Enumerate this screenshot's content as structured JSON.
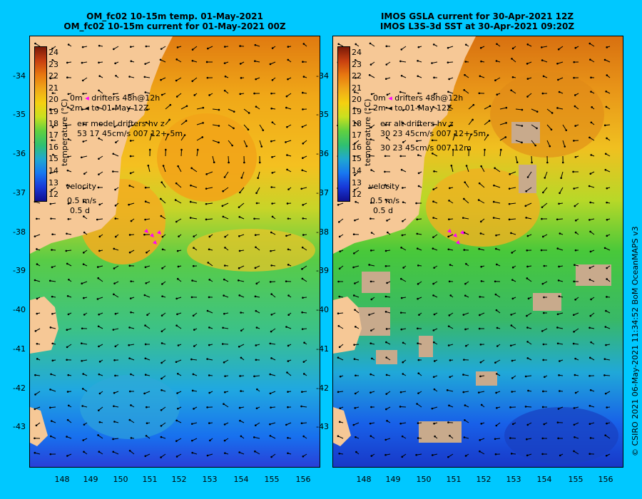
{
  "panels": [
    {
      "title_line1": "OM_fc02 10-15m temp. 01-May-2021",
      "title_line2": "OM_fc02 10-15m current for 01-May-2021 00Z",
      "legend_drifters": "drifters 48h@12h",
      "legend_to": "to 01-May 12Z",
      "legend_prefix_1": "0m",
      "legend_prefix_2": "2m",
      "err_title": "err model drifters hv z",
      "err_line1": "53 17 45cm/s 007 12+-5m",
      "err_line2": ""
    },
    {
      "title_line1": "IMOS GSLA current for 30-Apr-2021 12Z",
      "title_line2": "IMOS L3S-3d SST at 30-Apr-2021 09:20Z",
      "legend_drifters": "drifters 48h@12h",
      "legend_to": "to 01-May 12Z",
      "legend_prefix_1": "0m",
      "legend_prefix_2": "2m",
      "err_title": "err alt drifters hv z",
      "err_line1": "30 23 45cm/s 007 12+-5m",
      "err_line2": "30 23 45cm/s 007 12m"
    }
  ],
  "colorbar": {
    "title": "temperature (°C)",
    "ticks": [
      "24",
      "23",
      "22",
      "21",
      "20",
      "19",
      "18",
      "17",
      "16",
      "15",
      "14",
      "13",
      "12"
    ]
  },
  "velocity_legend": {
    "label": "velocity",
    "speed": "0.5 m/s",
    "duration": "0.5 d"
  },
  "lat_ticks": [
    "-34",
    "-35",
    "-36",
    "-37",
    "-38",
    "-39",
    "-40",
    "-41",
    "-42",
    "-43"
  ],
  "lon_ticks": [
    "148",
    "149",
    "150",
    "151",
    "152",
    "153",
    "154",
    "155",
    "156"
  ],
  "credit": "© CSIRO 2021   06-May-2021 11:34:52 BoM OceanMAPS v3",
  "colors": {
    "background": "#00c8ff",
    "land": "#f6c896",
    "cloud": "#c8aa8c",
    "drifter": "#ff00ff"
  }
}
